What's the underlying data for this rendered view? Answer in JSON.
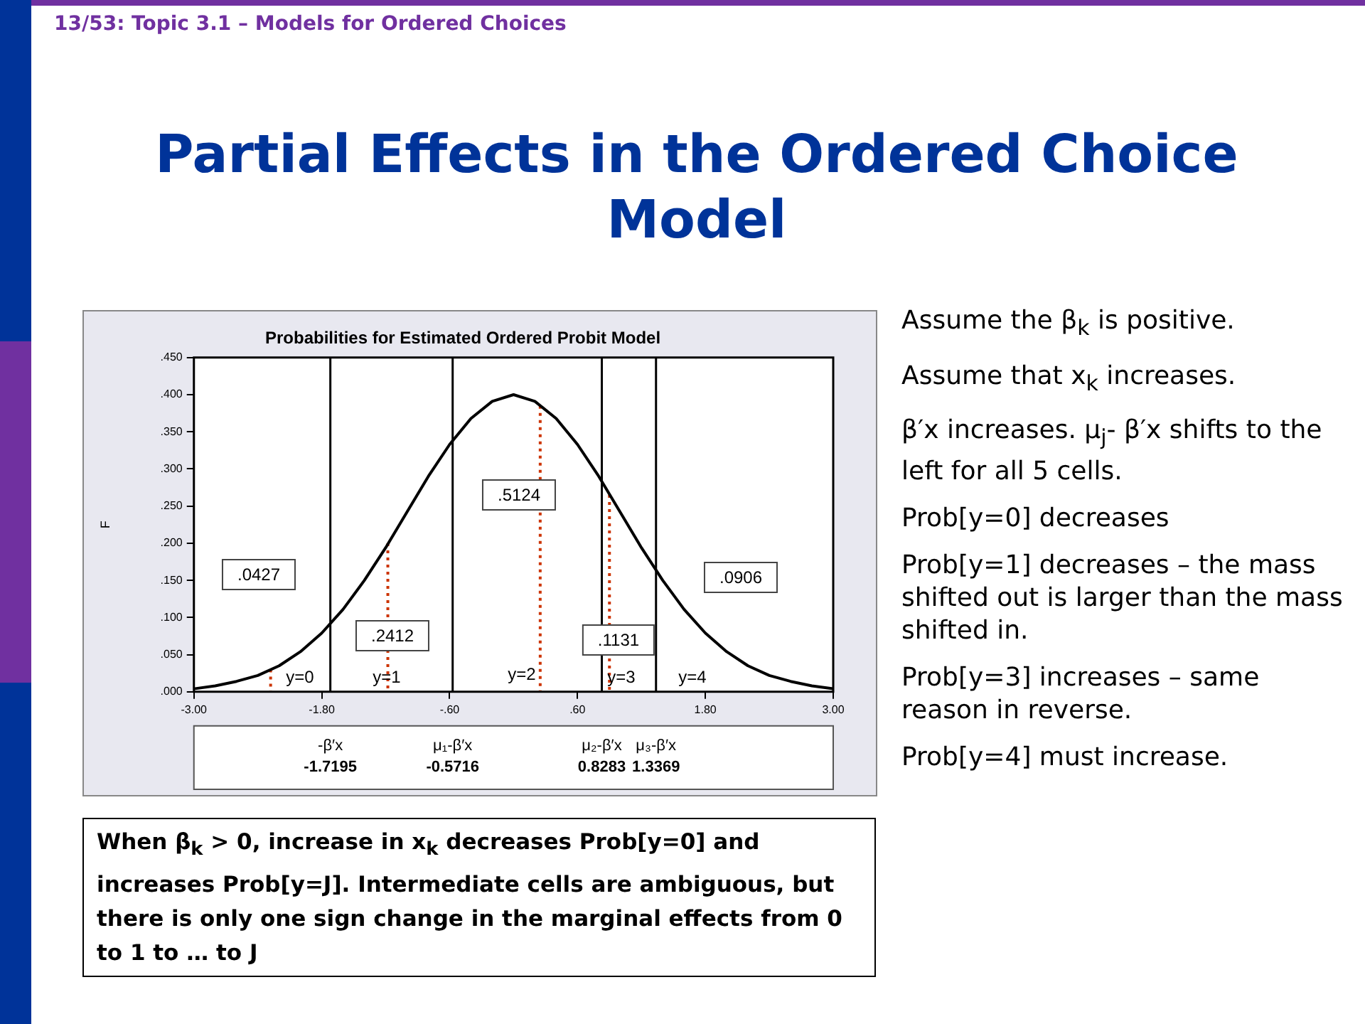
{
  "chart_data": {
    "type": "line",
    "title": "Partial Effects in the Ordered Choice Model",
    "subtitle": "Probabilities for Estimated Ordered Probit Model",
    "ylabel": "F",
    "xlim": [
      -3,
      3
    ],
    "xticks": [
      {
        "value": -3,
        "label": "-3.00"
      },
      {
        "value": -1.8,
        "label": "-1.80"
      },
      {
        "value": -0.6,
        "label": "-.60"
      },
      {
        "value": 0.6,
        "label": ".60"
      },
      {
        "value": 1.8,
        "label": "1.80"
      },
      {
        "value": 3,
        "label": "3.00"
      }
    ],
    "ylim": [
      0,
      0.45
    ],
    "yticks": [
      {
        "value": 0,
        "label": ".000"
      },
      {
        "value": 0.05,
        "label": ".050"
      },
      {
        "value": 0.1,
        "label": ".100"
      },
      {
        "value": 0.15,
        "label": ".150"
      },
      {
        "value": 0.2,
        "label": ".200"
      },
      {
        "value": 0.25,
        "label": ".250"
      },
      {
        "value": 0.3,
        "label": ".300"
      },
      {
        "value": 0.35,
        "label": ".350"
      },
      {
        "value": 0.4,
        "label": ".400"
      },
      {
        "value": 0.45,
        "label": ".450"
      }
    ],
    "grid": false,
    "legend": false,
    "marker": "none",
    "series": [
      {
        "color": "#000000",
        "line_style": "solid",
        "x": [
          -3,
          -2.8,
          -2.6,
          -2.4,
          -2.2,
          -2,
          -1.8,
          -1.6,
          -1.4,
          -1.2,
          -1,
          -0.8,
          -0.6,
          -0.4,
          -0.2,
          0,
          0.2,
          0.4,
          0.6,
          0.8,
          1,
          1.2,
          1.4,
          1.6,
          1.8,
          2,
          2.2,
          2.4,
          2.6,
          2.8,
          3
        ],
        "values": [
          0.004,
          0.008,
          0.014,
          0.022,
          0.035,
          0.054,
          0.079,
          0.111,
          0.15,
          0.194,
          0.242,
          0.29,
          0.333,
          0.368,
          0.391,
          0.4,
          0.391,
          0.368,
          0.333,
          0.29,
          0.242,
          0.194,
          0.15,
          0.111,
          0.079,
          0.054,
          0.035,
          0.022,
          0.014,
          0.008,
          0.004
        ]
      },
      {
        "color": "#cc3300",
        "line_style": "dotted",
        "x": [
          -2.28,
          -2.28
        ],
        "values": [
          0.03,
          0
        ]
      },
      {
        "color": "#cc3300",
        "line_style": "dotted",
        "x": [
          -1.18,
          -1.18
        ],
        "values": [
          0.2,
          0
        ]
      },
      {
        "color": "#cc3300",
        "line_style": "dotted",
        "x": [
          0.25,
          0.25
        ],
        "values": [
          0.385,
          0
        ]
      },
      {
        "color": "#cc3300",
        "line_style": "dotted",
        "x": [
          0.9,
          0.9
        ],
        "values": [
          0.265,
          0
        ]
      }
    ],
    "ref_lines": [
      {
        "axis": "x",
        "value": -1.7195,
        "color": "#000000",
        "line_style": "solid"
      },
      {
        "axis": "x",
        "value": -0.5716,
        "color": "#000000",
        "line_style": "solid"
      },
      {
        "axis": "x",
        "value": 0.8283,
        "color": "#000000",
        "line_style": "solid"
      },
      {
        "axis": "x",
        "value": 1.3369,
        "color": "#000000",
        "line_style": "solid"
      }
    ],
    "annotations": [
      "13/53: Topic 3.1 – Models for Ordered Choices",
      "Assume the β$_{k}$ is positive.",
      "Assume that x$_{k}$ increases.",
      "β′x increases. μ$_{j}$- β′x shifts to the left for all 5 cells.",
      "Prob[y=0] decreases",
      "Prob[y=1] decreases – the mass shifted out is larger than the mass shifted in.",
      "Prob[y=3] increases – same reason in reverse.",
      "Prob[y=4] must increase.",
      "When β$_{k}$ > 0, increase in x$_{k}$ decreases Prob[y=0] and increases Prob[y=J]. Intermediate cells are ambiguous, but there is only one sign change in the marginal effects from 0 to 1 to … to J",
      ".0427",
      ".2412",
      ".5124",
      ".1131",
      ".0906",
      "y=0",
      "y=1",
      "y=2",
      "y=3",
      "y=4",
      "-β′x\n-1.7195",
      "μ₁-β′x\n-0.5716",
      "μ₂-β′x\n0.8283",
      "μ₃-β′x\n1.3369"
    ]
  }
}
